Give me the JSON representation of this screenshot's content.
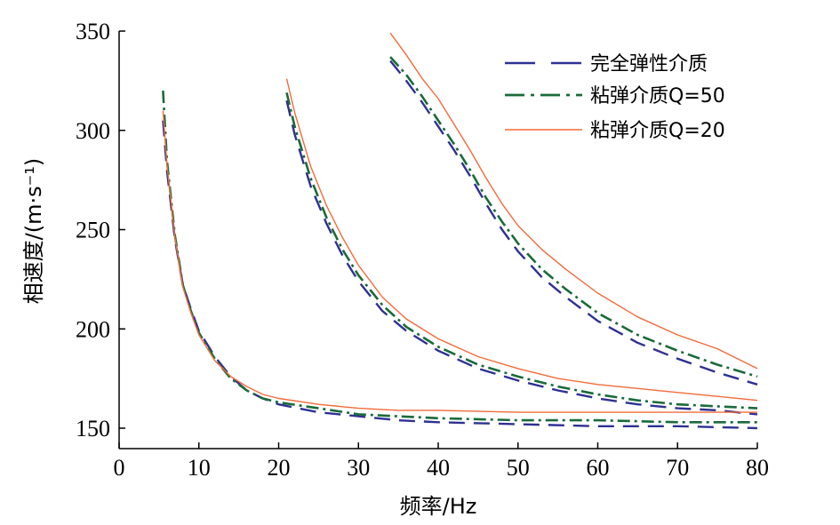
{
  "chart_data": {
    "type": "line",
    "xlabel": "频率/Hz",
    "ylabel": "相速度/(m·s⁻¹)",
    "xlim": [
      0,
      80
    ],
    "ylim": [
      140,
      350
    ],
    "xticks": [
      "0",
      "10",
      "20",
      "30",
      "40",
      "50",
      "60",
      "70",
      "80"
    ],
    "yticks": [
      "150",
      "200",
      "250",
      "300",
      "350"
    ],
    "grid": false,
    "legend_position": "top-right",
    "series": [
      {
        "name": "完全弹性介质",
        "style": "dashed",
        "color": "#2e3192",
        "modes": [
          {
            "x": [
              5.5,
              6,
              7,
              8,
              9,
              10,
              12,
              14,
              16,
              18,
              20,
              25,
              30,
              35,
              40,
              50,
              60,
              70,
              80
            ],
            "y": [
              305,
              280,
              245,
              222,
              210,
              199,
              186,
              176,
              169,
              165,
              162,
              158,
              156,
              154,
              153,
              152,
              151,
              151,
              150
            ]
          },
          {
            "x": [
              21,
              22,
              24,
              26,
              28,
              30,
              33,
              36,
              40,
              45,
              50,
              55,
              60,
              65,
              70,
              75,
              80
            ],
            "y": [
              315,
              298,
              272,
              253,
              237,
              224,
              209,
              199,
              189,
              180,
              174,
              169,
              165,
              162,
              160,
              159,
              157
            ]
          },
          {
            "x": [
              34,
              36,
              38,
              40,
              42,
              44,
              46,
              48,
              50,
              53,
              56,
              60,
              65,
              70,
              75,
              80
            ],
            "y": [
              335,
              325,
              314,
              302,
              290,
              277,
              263,
              250,
              239,
              226,
              216,
              204,
              193,
              185,
              178,
              172
            ]
          }
        ]
      },
      {
        "name": "粘弹介质Q=50",
        "style": "dashdot",
        "color": "#1a6b3a",
        "modes": [
          {
            "x": [
              5.5,
              6,
              7,
              8,
              9,
              10,
              12,
              14,
              16,
              18,
              20,
              25,
              30,
              35,
              40,
              50,
              60,
              70,
              80
            ],
            "y": [
              320,
              285,
              247,
              222,
              209,
              198,
              185,
              175,
              169,
              165,
              163,
              160,
              157,
              156,
              155,
              154,
              154,
              153,
              153
            ]
          },
          {
            "x": [
              21,
              22,
              24,
              26,
              28,
              30,
              33,
              36,
              40,
              45,
              50,
              55,
              60,
              65,
              70,
              75,
              80
            ],
            "y": [
              319,
              302,
              276,
              256,
              240,
              227,
              212,
              201,
              191,
              182,
              176,
              171,
              167,
              164,
              162,
              161,
              160
            ]
          },
          {
            "x": [
              34,
              36,
              38,
              40,
              42,
              44,
              46,
              48,
              50,
              53,
              56,
              60,
              65,
              70,
              75,
              80
            ],
            "y": [
              337,
              328,
              317,
              305,
              293,
              280,
              266,
              254,
              243,
              230,
              220,
              208,
              197,
              189,
              182,
              176
            ]
          }
        ]
      },
      {
        "name": "粘弹介质Q=20",
        "style": "solid",
        "color": "#f26b3a",
        "modes": [
          {
            "x": [
              5.5,
              6,
              7,
              8,
              9,
              10,
              12,
              14,
              16,
              18,
              20,
              25,
              30,
              35,
              40,
              50,
              60,
              70,
              80
            ],
            "y": [
              310,
              283,
              246,
              221,
              208,
              197,
              184,
              176,
              171,
              167,
              165,
              162,
              160,
              159,
              159,
              158,
              158,
              158,
              158
            ]
          },
          {
            "x": [
              21,
              22,
              24,
              26,
              28,
              30,
              33,
              36,
              40,
              45,
              50,
              55,
              60,
              65,
              70,
              75,
              80
            ],
            "y": [
              326,
              309,
              282,
              262,
              246,
              232,
              216,
              205,
              195,
              186,
              180,
              175,
              172,
              170,
              168,
              166,
              164
            ]
          },
          {
            "x": [
              34,
              36,
              38,
              40,
              42,
              44,
              46,
              48,
              50,
              53,
              56,
              60,
              65,
              70,
              75,
              80
            ],
            "y": [
              349,
              338,
              326,
              316,
              303,
              290,
              276,
              263,
              252,
              240,
              230,
              218,
              206,
              197,
              190,
              180
            ]
          }
        ]
      }
    ]
  }
}
